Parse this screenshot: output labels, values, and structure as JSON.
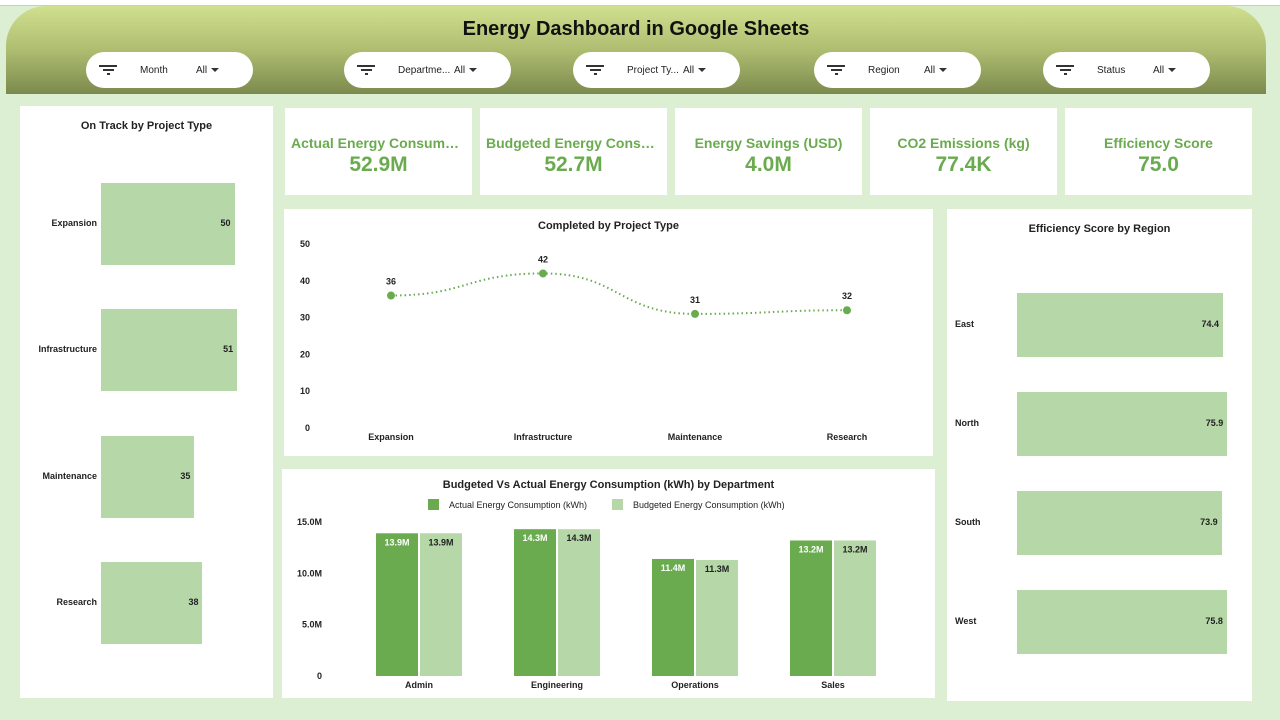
{
  "title": "Energy Dashboard in Google Sheets",
  "filters": [
    {
      "label": "Month",
      "value": "All"
    },
    {
      "label": "Departme...",
      "value": "All"
    },
    {
      "label": "Project Ty...",
      "value": "All"
    },
    {
      "label": "Region",
      "value": "All"
    },
    {
      "label": "Status",
      "value": "All"
    }
  ],
  "kpis": [
    {
      "label": "Actual Energy Consumptio...",
      "value": "52.9M"
    },
    {
      "label": "Budgeted Energy Consump...",
      "value": "52.7M"
    },
    {
      "label": "Energy Savings (USD)",
      "value": "4.0M"
    },
    {
      "label": "CO2 Emissions (kg)",
      "value": "77.4K"
    },
    {
      "label": "Efficiency Score",
      "value": "75.0"
    }
  ],
  "colors": {
    "actual": "#6aab4f",
    "budgeted": "#b6d7a8",
    "kpi": "#6aab4f"
  },
  "chart_data": [
    {
      "type": "bar",
      "orientation": "horizontal",
      "title": "On Track  by Project Type",
      "categories": [
        "Expansion",
        "Infrastructure",
        "Maintenance",
        "Research"
      ],
      "values": [
        50,
        51,
        35,
        38
      ],
      "labels": [
        "50",
        "51",
        "35",
        "38"
      ]
    },
    {
      "type": "line",
      "title": "Completed  by Project Type",
      "categories": [
        "Expansion",
        "Infrastructure",
        "Maintenance",
        "Research"
      ],
      "values": [
        36,
        42,
        31,
        32
      ],
      "labels": [
        "36",
        "42",
        "31",
        "32"
      ],
      "ylim": [
        0,
        50
      ],
      "yticks": [
        "0",
        "10",
        "20",
        "30",
        "40",
        "50"
      ]
    },
    {
      "type": "bar",
      "title": "Budgeted Vs Actual Energy Consumption (kWh) by Department",
      "legend": "top",
      "categories": [
        "Admin",
        "Engineering",
        "Operations",
        "Sales"
      ],
      "ylim": [
        0,
        15000000
      ],
      "yticks": [
        "0",
        "5.0M",
        "10.0M",
        "15.0M"
      ],
      "series": [
        {
          "name": "Actual Energy Consumption (kWh)",
          "values": [
            13900000,
            14300000,
            11400000,
            13200000
          ],
          "labels": [
            "13.9M",
            "14.3M",
            "11.4M",
            "13.2M"
          ]
        },
        {
          "name": "Budgeted Energy Consumption (kWh)",
          "values": [
            13900000,
            14300000,
            11300000,
            13200000
          ],
          "labels": [
            "13.9M",
            "14.3M",
            "11.3M",
            "13.2M"
          ]
        }
      ]
    },
    {
      "type": "bar",
      "orientation": "horizontal",
      "title": "Efficiency Score by Region",
      "categories": [
        "East",
        "North",
        "South",
        "West"
      ],
      "values": [
        74.4,
        75.9,
        73.9,
        75.8
      ],
      "labels": [
        "74.4",
        "75.9",
        "73.9",
        "75.8"
      ]
    }
  ]
}
